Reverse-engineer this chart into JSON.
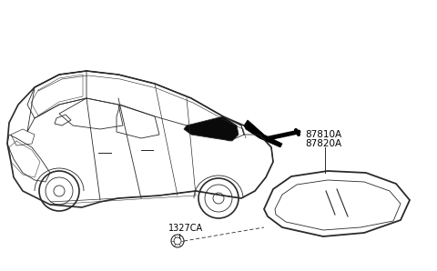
{
  "bg_color": "#ffffff",
  "line_color": "#2a2a2a",
  "label_87810A": "87810A",
  "label_87820A": "87820A",
  "label_1327CA": "1327CA",
  "font_size_part": 7.5,
  "font_size_label": 7.0,
  "arrow_color": "#000000",
  "glass_color": "#000000",
  "lw_car_outer": 1.2,
  "lw_car_inner": 0.6,
  "lw_glass_outer": 1.3,
  "lw_glass_inner": 0.6,
  "lw_arrow": 2.5
}
